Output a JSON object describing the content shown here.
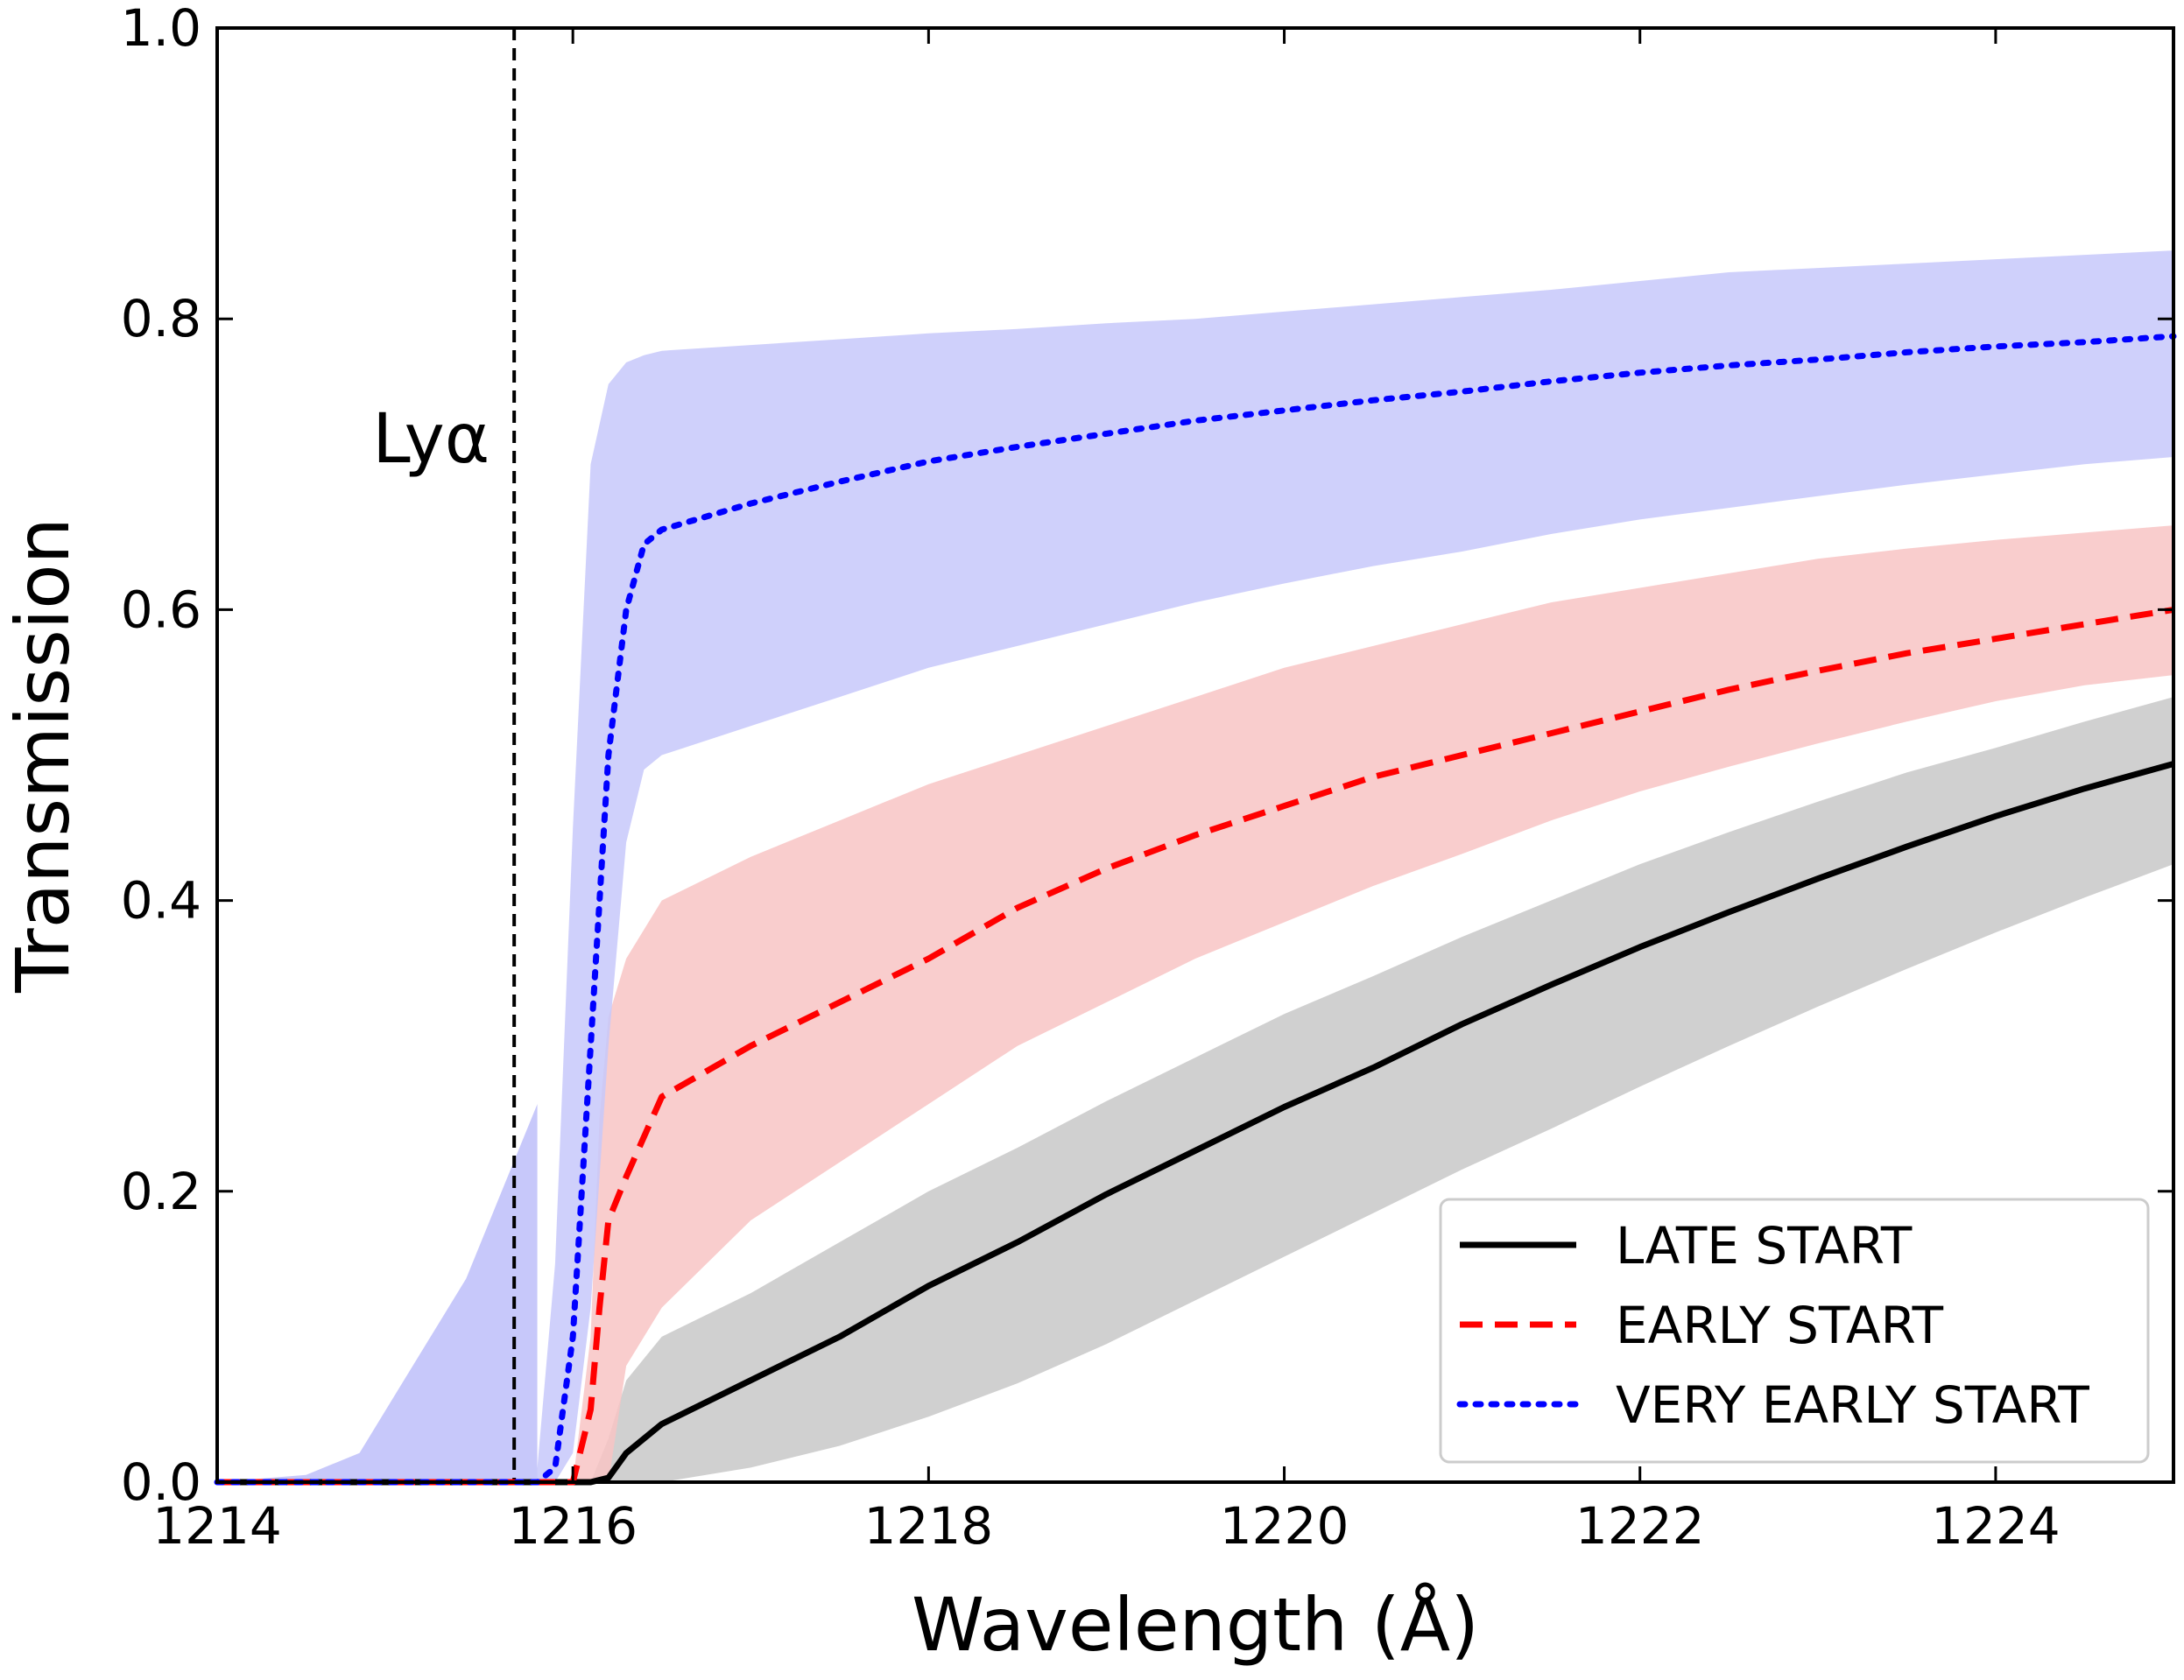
{
  "chart_data": {
    "type": "line",
    "title": "",
    "xlabel": "Wavelength (Å)",
    "ylabel": "Transmission",
    "xlim": [
      1214,
      1225
    ],
    "ylim": [
      0,
      1
    ],
    "xticks": [
      "1214",
      "1216",
      "1218",
      "1220",
      "1222",
      "1224"
    ],
    "yticks": [
      "0.0",
      "0.2",
      "0.4",
      "0.6",
      "0.8",
      "1.0"
    ],
    "grid": false,
    "legend_position": "bottom-right",
    "annotation": {
      "text": "Lyα",
      "x": 1215.67
    },
    "reference_line": {
      "x": 1215.67,
      "style": "dashed",
      "color": "#000000"
    },
    "series": [
      {
        "name": "LATE START",
        "color": "#000000",
        "band_color": "#c8c8c8",
        "line_style": "solid",
        "x": [
          1214,
          1216.1,
          1216.2,
          1216.3,
          1216.5,
          1217,
          1217.5,
          1218,
          1218.5,
          1219,
          1219.5,
          1220,
          1220.5,
          1221,
          1221.5,
          1222,
          1222.5,
          1223,
          1223.5,
          1224,
          1224.5,
          1225
        ],
        "values": [
          0.0,
          0.0,
          0.003,
          0.02,
          0.04,
          0.07,
          0.1,
          0.135,
          0.165,
          0.198,
          0.228,
          0.258,
          0.285,
          0.315,
          0.342,
          0.368,
          0.392,
          0.415,
          0.437,
          0.458,
          0.477,
          0.494
        ],
        "lower": [
          0.0,
          0.0,
          0.0,
          0.0,
          0.0,
          0.01,
          0.025,
          0.045,
          0.068,
          0.095,
          0.125,
          0.155,
          0.185,
          0.215,
          0.243,
          0.272,
          0.3,
          0.327,
          0.353,
          0.378,
          0.402,
          0.425
        ],
        "upper": [
          0.0,
          0.0,
          0.03,
          0.07,
          0.1,
          0.13,
          0.165,
          0.2,
          0.23,
          0.262,
          0.292,
          0.322,
          0.348,
          0.375,
          0.4,
          0.425,
          0.447,
          0.468,
          0.488,
          0.505,
          0.523,
          0.54
        ]
      },
      {
        "name": "EARLY START",
        "color": "#ff0000",
        "band_color": "#f8c4c4",
        "line_style": "dashed",
        "x": [
          1214,
          1216,
          1216.1,
          1216.15,
          1216.2,
          1216.3,
          1216.5,
          1217,
          1217.5,
          1218,
          1218.5,
          1219,
          1219.5,
          1220,
          1220.5,
          1221,
          1221.5,
          1222,
          1222.5,
          1223,
          1223.5,
          1224,
          1224.5,
          1225
        ],
        "values": [
          0.0,
          0.0,
          0.05,
          0.12,
          0.18,
          0.21,
          0.265,
          0.3,
          0.33,
          0.36,
          0.395,
          0.422,
          0.445,
          0.465,
          0.485,
          0.5,
          0.515,
          0.53,
          0.545,
          0.558,
          0.57,
          0.58,
          0.59,
          0.6
        ],
        "lower": [
          0.0,
          0.0,
          0.0,
          0.0,
          0.0,
          0.08,
          0.12,
          0.18,
          0.22,
          0.26,
          0.3,
          0.33,
          0.36,
          0.385,
          0.41,
          0.432,
          0.455,
          0.475,
          0.492,
          0.508,
          0.523,
          0.537,
          0.548,
          0.555
        ],
        "upper": [
          0.0,
          0.0,
          0.1,
          0.25,
          0.32,
          0.36,
          0.4,
          0.43,
          0.455,
          0.48,
          0.5,
          0.52,
          0.54,
          0.56,
          0.575,
          0.59,
          0.605,
          0.615,
          0.625,
          0.635,
          0.642,
          0.648,
          0.653,
          0.658
        ]
      },
      {
        "name": "VERY EARLY START",
        "color": "#0000ff",
        "band_color": "#c7c8fa",
        "line_style": "dotted",
        "x": [
          1214,
          1215.8,
          1215.9,
          1216,
          1216.1,
          1216.2,
          1216.3,
          1216.4,
          1216.5,
          1217,
          1217.5,
          1218,
          1218.5,
          1219,
          1219.5,
          1220,
          1220.5,
          1221,
          1221.5,
          1222,
          1222.5,
          1223,
          1223.5,
          1224,
          1224.5,
          1225
        ],
        "values": [
          0.0,
          0.0,
          0.01,
          0.1,
          0.3,
          0.5,
          0.6,
          0.645,
          0.655,
          0.673,
          0.688,
          0.702,
          0.712,
          0.721,
          0.73,
          0.737,
          0.744,
          0.75,
          0.757,
          0.763,
          0.768,
          0.772,
          0.777,
          0.781,
          0.784,
          0.788
        ],
        "lower": [
          0.0,
          0.0,
          0.0,
          0.02,
          0.12,
          0.3,
          0.44,
          0.49,
          0.5,
          0.52,
          0.54,
          0.56,
          0.575,
          0.59,
          0.605,
          0.618,
          0.63,
          0.64,
          0.652,
          0.662,
          0.67,
          0.678,
          0.686,
          0.693,
          0.7,
          0.705
        ],
        "upper": [
          0.0,
          0.01,
          0.15,
          0.45,
          0.7,
          0.755,
          0.77,
          0.775,
          0.778,
          0.782,
          0.786,
          0.79,
          0.793,
          0.797,
          0.8,
          0.805,
          0.81,
          0.815,
          0.82,
          0.826,
          0.832,
          0.835,
          0.838,
          0.841,
          0.844,
          0.847
        ]
      }
    ],
    "band_extra_lower_blue": {
      "x": [
        1214,
        1214.5,
        1214.8,
        1215,
        1215.2,
        1215.4,
        1215.6,
        1215.8
      ],
      "upper": [
        0.0,
        0.005,
        0.02,
        0.06,
        0.1,
        0.14,
        0.2,
        0.26
      ]
    }
  }
}
